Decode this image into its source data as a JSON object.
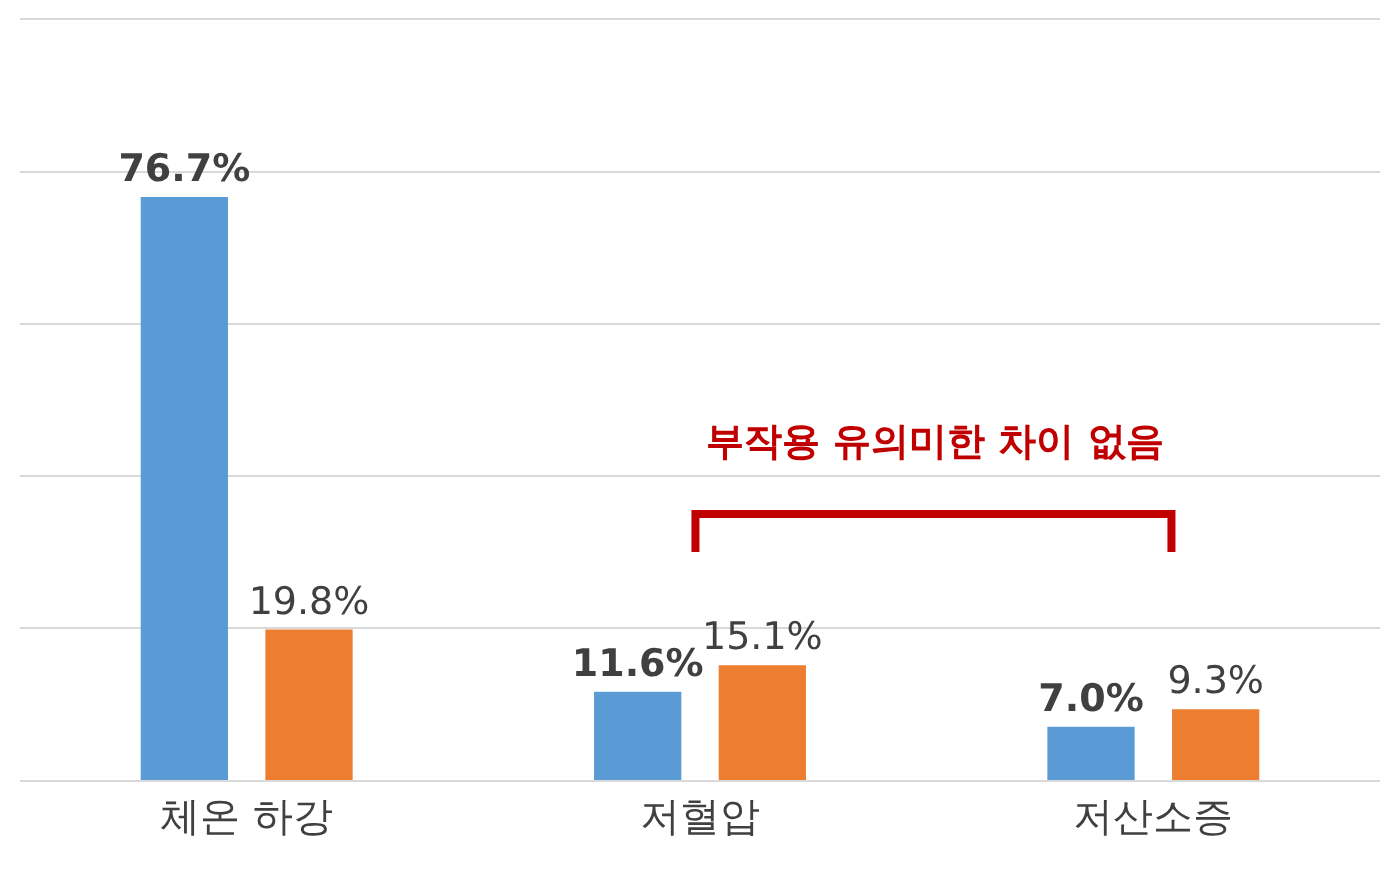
{
  "chart_data": {
    "type": "bar",
    "categories": [
      "체온 하강",
      "저혈압",
      "저산소증"
    ],
    "series": [
      {
        "color": "#5b9bd5",
        "values": [
          76.7,
          11.6,
          7.0
        ],
        "value_labels": [
          "76.7%",
          "11.6%",
          "7.0%"
        ]
      },
      {
        "color": "#ed7d31",
        "values": [
          19.8,
          15.1,
          9.3
        ],
        "value_labels": [
          "19.8%",
          "15.1%",
          "9.3%"
        ]
      }
    ],
    "ylim": [
      0,
      100
    ],
    "yticks": [
      {
        "value": 0,
        "label": null
      },
      {
        "value": 20,
        "label": null
      },
      {
        "value": 40,
        "label": null
      },
      {
        "value": 60,
        "label": null
      },
      {
        "value": 80,
        "label": null
      },
      {
        "value": 100,
        "label": null
      }
    ],
    "grid": "y",
    "tick_labels": "x",
    "legend": false,
    "annotations": [
      "부작용 유의미한 차이 없음"
    ]
  }
}
